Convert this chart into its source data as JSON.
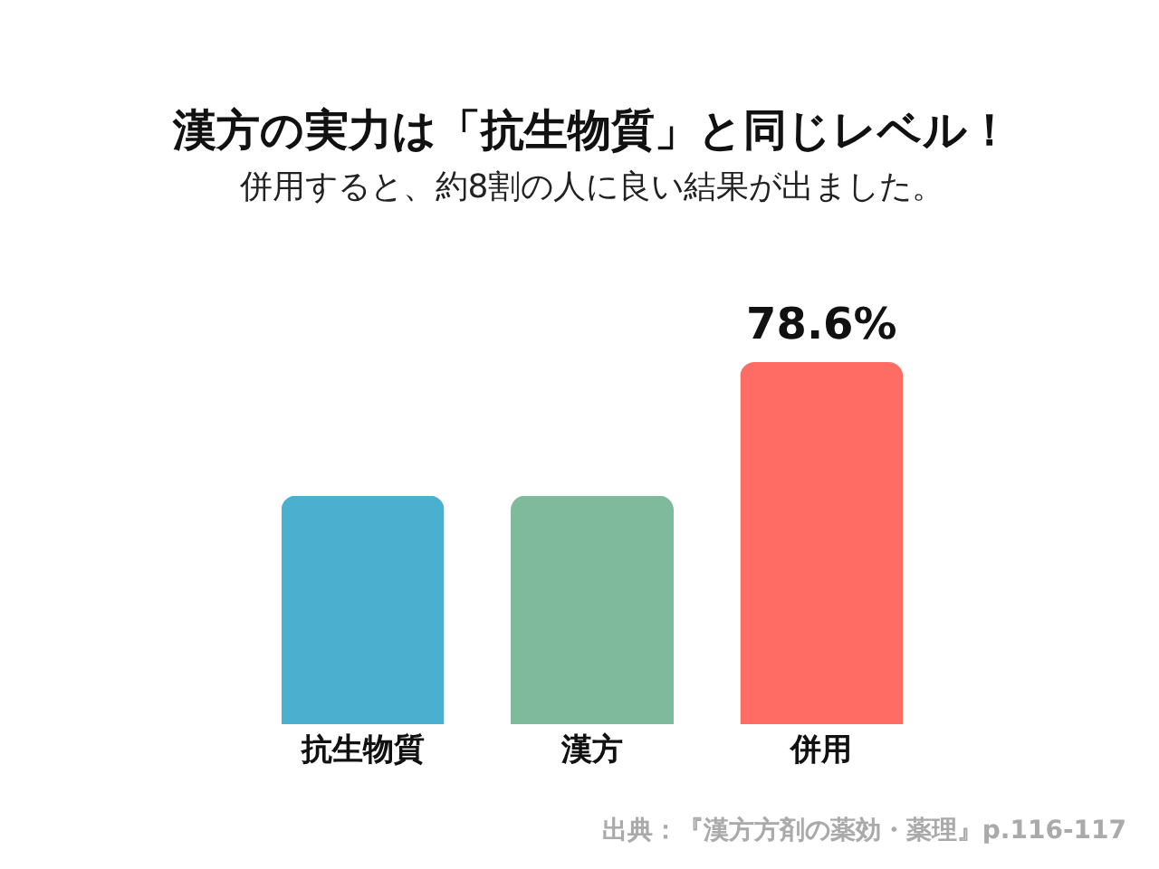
{
  "chart_data": {
    "type": "bar",
    "title": "漢方の実力は「抗生物質」と同じレベル！",
    "subtitle": "併用すると、約8割の人に良い結果が出ました。",
    "categories": [
      "抗生物質",
      "漢方",
      "併用"
    ],
    "values": [
      49.6,
      49.6,
      78.6
    ],
    "colors": [
      "#4bafcf",
      "#7fba9c",
      "#fe6c63"
    ],
    "value_labels": [
      null,
      null,
      "78.6%"
    ],
    "annotations": [
      "出典：『漢方方剤の薬効・薬理』p.116-117"
    ]
  }
}
